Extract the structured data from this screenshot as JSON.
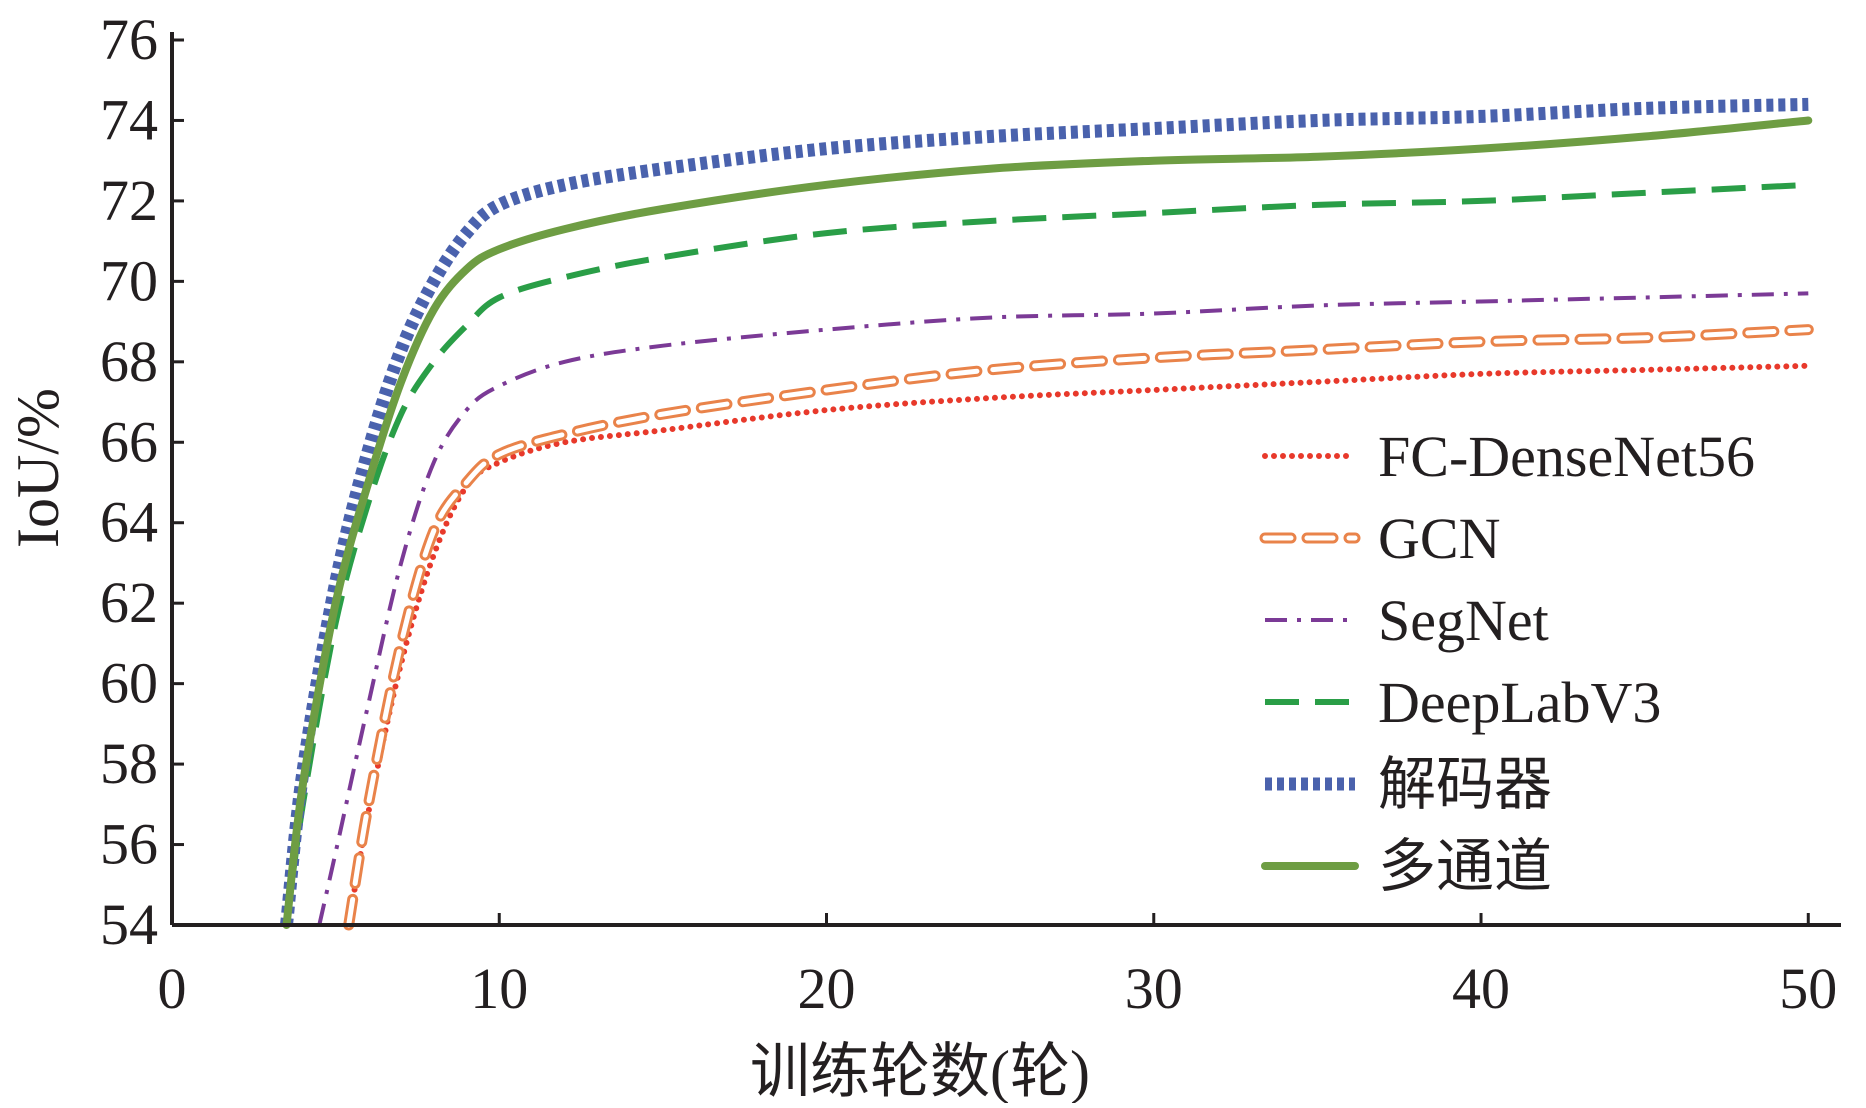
{
  "chart_data": {
    "type": "line",
    "title": "",
    "xlabel": "训练轮数(轮)",
    "ylabel": "IoU/%",
    "xlim": [
      0,
      51
    ],
    "ylim": [
      54,
      76
    ],
    "xticks": [
      0,
      10,
      20,
      30,
      40,
      50
    ],
    "yticks": [
      54,
      56,
      58,
      60,
      62,
      64,
      66,
      68,
      70,
      72,
      74,
      76
    ],
    "grid": false,
    "legend_position": "right",
    "series": [
      {
        "name": "FC-DenseNet56",
        "color": "#e8392b",
        "style": "dotted",
        "x": [
          5.4,
          6,
          7,
          8,
          9,
          10,
          12,
          15,
          20,
          25,
          30,
          35,
          40,
          45,
          50
        ],
        "y": [
          54,
          56.8,
          60.5,
          63.2,
          64.9,
          65.5,
          66.0,
          66.3,
          66.8,
          67.1,
          67.3,
          67.5,
          67.7,
          67.8,
          67.9
        ]
      },
      {
        "name": "GCN",
        "color": "#e9834a",
        "style": "outlined-dash",
        "x": [
          5.4,
          6,
          7,
          8,
          9,
          10,
          12,
          15,
          20,
          25,
          30,
          35,
          40,
          45,
          50
        ],
        "y": [
          54,
          57.0,
          61.0,
          63.8,
          65.0,
          65.7,
          66.2,
          66.7,
          67.3,
          67.8,
          68.1,
          68.3,
          68.5,
          68.6,
          68.8
        ]
      },
      {
        "name": "SegNet",
        "color": "#7b3a96",
        "style": "dashdot",
        "x": [
          4.5,
          5,
          6,
          7,
          8,
          9,
          10,
          12,
          15,
          20,
          25,
          30,
          35,
          40,
          45,
          50
        ],
        "y": [
          54,
          55.8,
          59.5,
          63.0,
          65.5,
          66.8,
          67.4,
          68.0,
          68.4,
          68.8,
          69.1,
          69.2,
          69.4,
          69.5,
          69.6,
          69.7
        ]
      },
      {
        "name": "DeepLabV3",
        "color": "#2a9e47",
        "style": "dashed",
        "x": [
          3.5,
          4,
          5,
          6,
          7,
          8,
          9,
          10,
          12,
          15,
          20,
          25,
          30,
          35,
          40,
          45,
          50
        ],
        "y": [
          54,
          57.0,
          61.5,
          64.5,
          66.7,
          68.0,
          68.9,
          69.6,
          70.1,
          70.6,
          71.2,
          71.5,
          71.7,
          71.9,
          72.0,
          72.2,
          72.4
        ]
      },
      {
        "name": "解码器",
        "color": "#4a62ad",
        "style": "heavy-dotted",
        "x": [
          3.5,
          4,
          5,
          6,
          7,
          8,
          9,
          10,
          12,
          15,
          20,
          25,
          30,
          35,
          40,
          45,
          50
        ],
        "y": [
          54,
          57.8,
          62.5,
          65.8,
          68.3,
          70.0,
          71.2,
          71.9,
          72.4,
          72.8,
          73.3,
          73.6,
          73.8,
          74.0,
          74.1,
          74.3,
          74.4
        ]
      },
      {
        "name": "多通道",
        "color": "#6e9d43",
        "style": "solid",
        "x": [
          3.5,
          4,
          5,
          6,
          7,
          8,
          9,
          10,
          12,
          15,
          20,
          25,
          30,
          35,
          40,
          45,
          50
        ],
        "y": [
          54,
          57.5,
          62.0,
          65.0,
          67.5,
          69.3,
          70.3,
          70.8,
          71.3,
          71.8,
          72.4,
          72.8,
          73.0,
          73.1,
          73.3,
          73.6,
          74.0
        ]
      }
    ]
  }
}
